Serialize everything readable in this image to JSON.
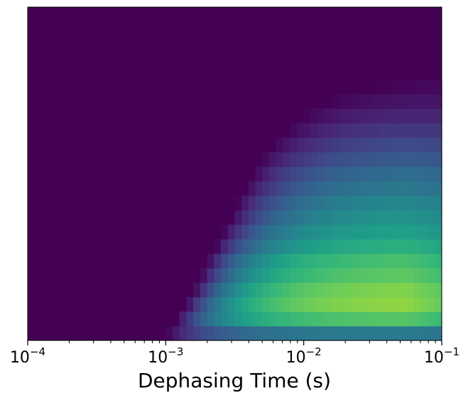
{
  "chart_data": {
    "type": "heatmap",
    "title": "",
    "xlabel": "Dephasing Time (s)",
    "ylabel": "",
    "x_scale": "log",
    "xlim": [
      0.0001,
      0.1
    ],
    "x_ticks": [
      {
        "value": 0.0001,
        "base": "10",
        "exp": "−4"
      },
      {
        "value": 0.001,
        "base": "10",
        "exp": "−3"
      },
      {
        "value": 0.01,
        "base": "10",
        "exp": "−2"
      },
      {
        "value": 0.1,
        "base": "10",
        "exp": "−1"
      }
    ],
    "y_ticks_visible": false,
    "colormap": "viridis",
    "background_color": "#440154",
    "grid": false,
    "rows": [
      {
        "onset": 0.00102,
        "peak": 0.42
      },
      {
        "onset": 0.0012,
        "peak": 0.74
      },
      {
        "onset": 0.0014,
        "peak": 0.84
      },
      {
        "onset": 0.0016,
        "peak": 0.82
      },
      {
        "onset": 0.0018,
        "peak": 0.76
      },
      {
        "onset": 0.002,
        "peak": 0.72
      },
      {
        "onset": 0.0023,
        "peak": 0.64
      },
      {
        "onset": 0.0026,
        "peak": 0.58
      },
      {
        "onset": 0.003,
        "peak": 0.53
      },
      {
        "onset": 0.0033,
        "peak": 0.48
      },
      {
        "onset": 0.0038,
        "peak": 0.42
      },
      {
        "onset": 0.0043,
        "peak": 0.37
      },
      {
        "onset": 0.005,
        "peak": 0.3
      },
      {
        "onset": 0.006,
        "peak": 0.24
      },
      {
        "onset": 0.0075,
        "peak": 0.18
      },
      {
        "onset": 0.0095,
        "peak": 0.12
      },
      {
        "onset": 0.015,
        "peak": 0.07
      },
      {
        "onset": 0.03,
        "peak": 0.03
      },
      {
        "onset": null,
        "peak": 0
      },
      {
        "onset": null,
        "peak": 0
      },
      {
        "onset": null,
        "peak": 0
      },
      {
        "onset": null,
        "peak": 0
      },
      {
        "onset": null,
        "peak": 0
      }
    ]
  }
}
